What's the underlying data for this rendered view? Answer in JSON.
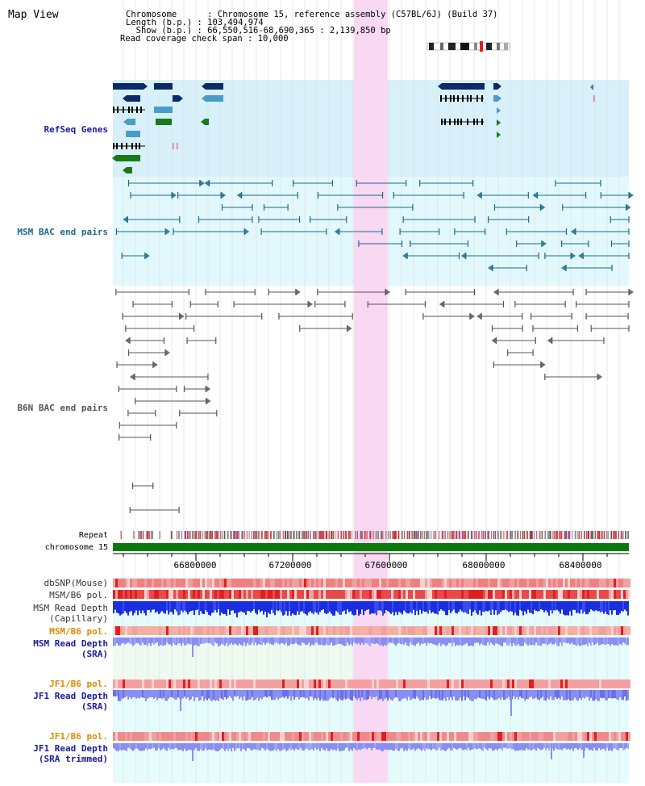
{
  "header": {
    "title": "Map View",
    "info_lines": [
      "Chromosome      : Chromosome 15, reference assembly (C57BL/6J) (Build 37)",
      "Length (b.p.) : 103,494,974",
      "  Show (b.p.) : 66,550,516-68,690,365 : 2,139,850 bp",
      "Read coverage check span : 10,000"
    ]
  },
  "track_labels": {
    "refseq": "RefSeq Genes",
    "msm_bac": "MSM BAC end pairs",
    "b6n_bac": "B6N BAC end pairs",
    "repeat": "Repeat",
    "chromosome": "chromosome 15",
    "dbsnp": "dbSNP(Mouse)",
    "msm_b6_pol_1": "MSM/B6 pol.",
    "msm_read_depth_cap_1": "MSM Read Depth",
    "msm_read_depth_cap_2": "(Capillary)",
    "msm_b6_pol_2": "MSM/B6 pol.",
    "msm_read_depth_sra_1": "MSM Read Depth",
    "msm_read_depth_sra_2": "(SRA)",
    "jf1_b6_pol_1": "JF1/B6 pol.",
    "jf1_read_depth_sra_1": "JF1 Read Depth",
    "jf1_read_depth_sra_2": "(SRA)",
    "jf1_b6_pol_2": "JF1/B6 pol.",
    "jf1_read_depth_trim_1": "JF1 Read Depth",
    "jf1_read_depth_trim_2": "(SRA trimmed)"
  },
  "axis": {
    "ticks": [
      "66800000",
      "67200000",
      "67600000",
      "68000000",
      "68400000"
    ]
  },
  "colors": {
    "refseq_bg": "#d8f0fa",
    "msm_bg": "#e2f8fc",
    "highlight": "#f8d8f2",
    "gene_dark": "#0a2a6a",
    "gene_light": "#4a9cc8",
    "gene_green": "#1a7a1a",
    "msm_pair": "#1a6a8a",
    "b6n_pair": "#555555",
    "chromosome_bar": "#0a7a0a",
    "depth_blue": "#1a2ee0",
    "depth_light": "#8a8ef0",
    "label_blue": "#1a1aa0",
    "label_orange": "#e08a00",
    "label_teal": "#1a6a8a"
  }
}
